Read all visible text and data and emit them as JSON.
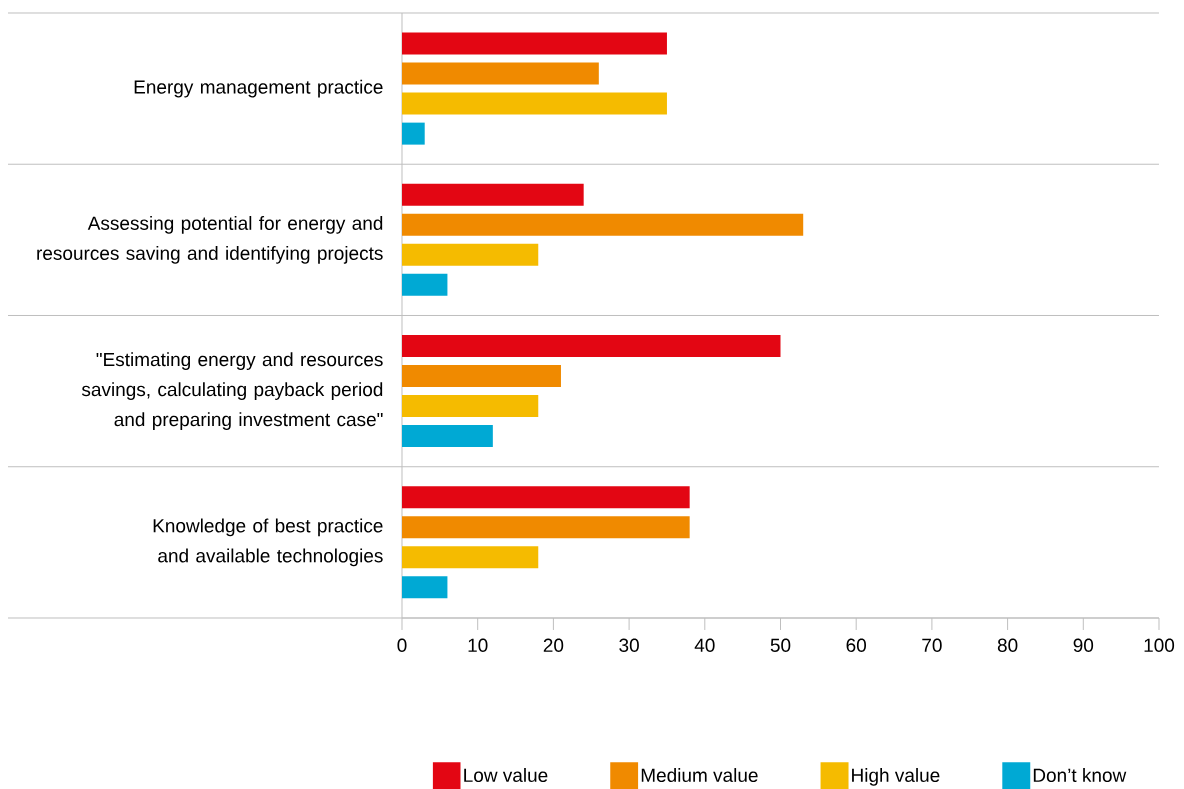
{
  "chart_data": {
    "type": "bar",
    "orientation": "horizontal",
    "categories": [
      "Energy management practice",
      "Assessing potential for energy and resources saving and identifying projects",
      "\"Estimating energy and resources savings, calculating payback period and preparing investment case\"",
      "Knowledge of best practice and available technologies"
    ],
    "series": [
      {
        "name": "Low value",
        "color": "#e30613",
        "values": [
          35,
          24,
          50,
          38
        ]
      },
      {
        "name": "Medium value",
        "color": "#f08a00",
        "values": [
          26,
          53,
          21,
          38
        ]
      },
      {
        "name": "High value",
        "color": "#f5bb00",
        "values": [
          35,
          18,
          18,
          18
        ]
      },
      {
        "name": "Don’t know",
        "color": "#00a9d4",
        "values": [
          3,
          6,
          12,
          6
        ]
      }
    ],
    "xlim": [
      0,
      100
    ],
    "xticks": [
      0,
      10,
      20,
      30,
      40,
      50,
      60,
      70,
      80,
      90,
      100
    ],
    "grid": "y",
    "legend": "bottom"
  }
}
